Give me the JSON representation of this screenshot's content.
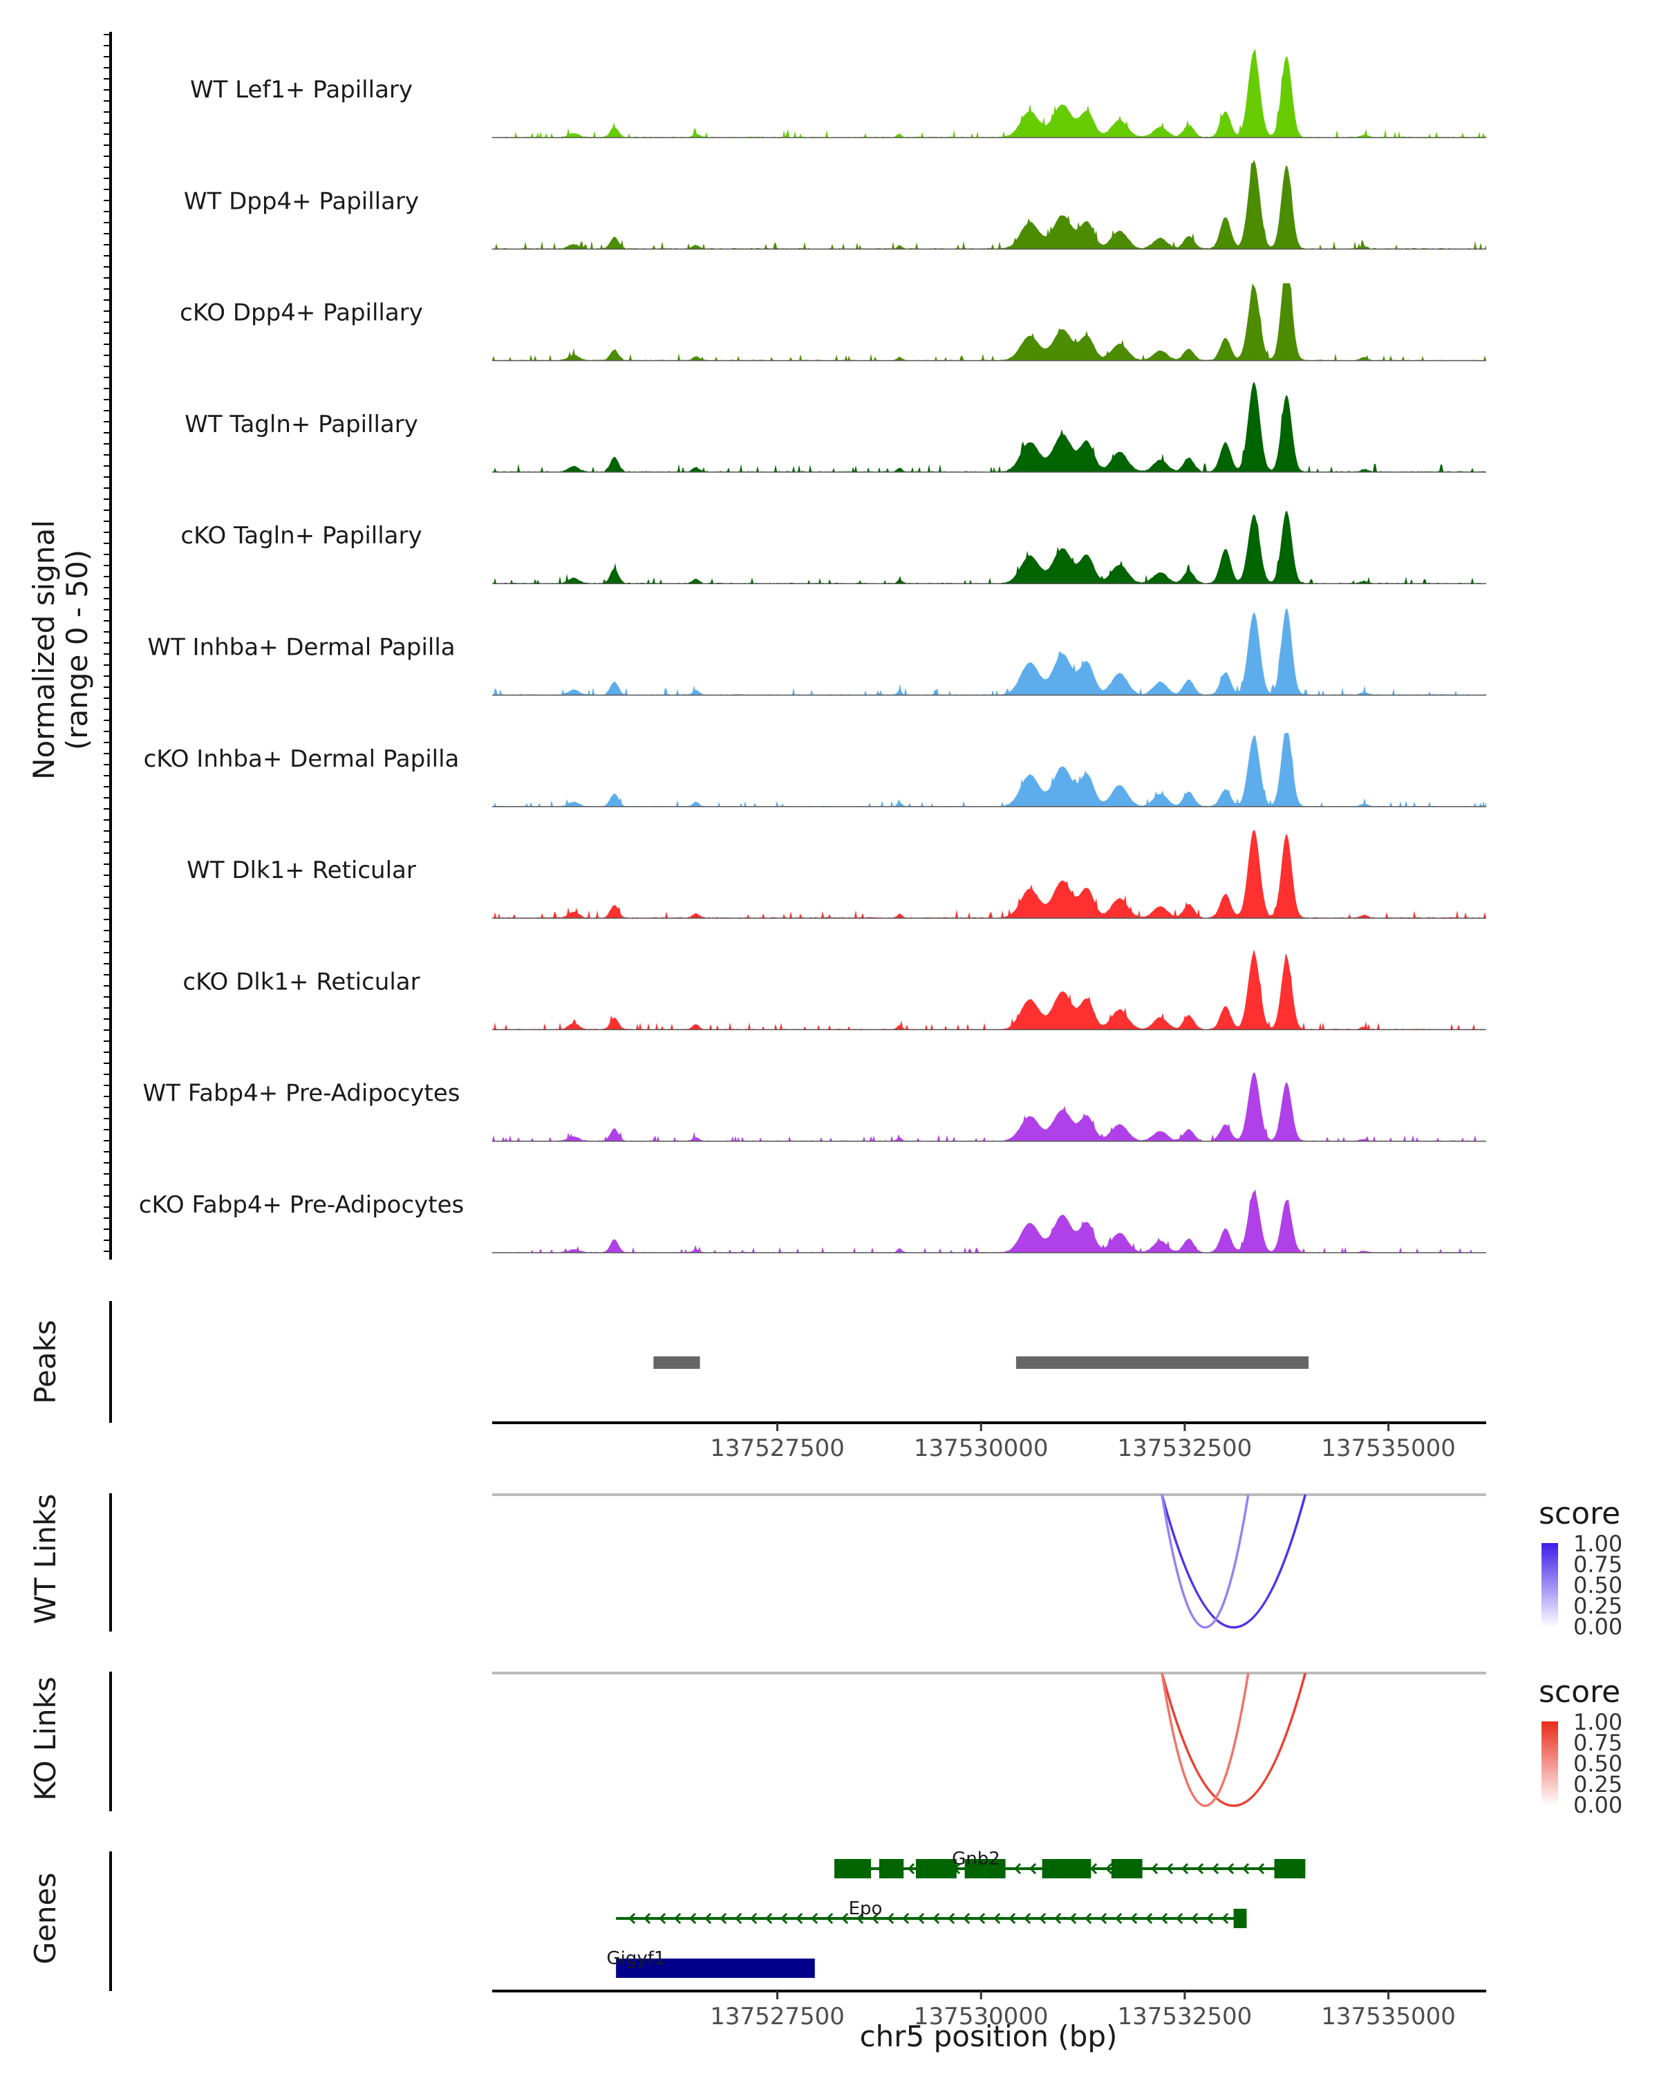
{
  "chart_data": {
    "type": "area",
    "title": "",
    "region": {
      "chrom": "chr5",
      "start": 137524000,
      "end": 137536200
    },
    "xlabel": "chr5 position (bp)",
    "x_ticks": [
      137527500,
      137530000,
      137532500,
      137535000
    ],
    "x_tick_labels": [
      "137527500",
      "137530000",
      "137532500",
      "137535000"
    ],
    "coverage": {
      "ylabel_line1": "Normalized signal",
      "ylabel_line2": "(range 0 - 50)",
      "ylim": [
        0,
        50
      ],
      "peak_profile": [
        {
          "pos": 137525000,
          "height": 0.05
        },
        {
          "pos": 137525500,
          "height": 0.12
        },
        {
          "pos": 137526500,
          "height": 0.04
        },
        {
          "pos": 137529000,
          "height": 0.04
        },
        {
          "pos": 137530600,
          "height": 0.3
        },
        {
          "pos": 137531000,
          "height": 0.38
        },
        {
          "pos": 137531300,
          "height": 0.3
        },
        {
          "pos": 137531700,
          "height": 0.2
        },
        {
          "pos": 137532200,
          "height": 0.12
        },
        {
          "pos": 137532550,
          "height": 0.14
        },
        {
          "pos": 137533000,
          "height": 0.3
        },
        {
          "pos": 137533350,
          "height": 1.0
        },
        {
          "pos": 137533750,
          "height": 0.95
        },
        {
          "pos": 137534700,
          "height": 0.03
        }
      ],
      "tracks": [
        {
          "name": "WT Lef1+ Papillary",
          "color": "#66CC00",
          "scale": 0.95
        },
        {
          "name": "WT Dpp4+ Papillary",
          "color": "#4C8C00",
          "scale": 0.98
        },
        {
          "name": "cKO Dpp4+ Papillary",
          "color": "#4C8C00",
          "scale": 0.82
        },
        {
          "name": "WT Tagln+ Papillary",
          "color": "#006400",
          "scale": 1.0
        },
        {
          "name": "cKO Tagln+ Papillary",
          "color": "#006400",
          "scale": 0.85
        },
        {
          "name": "WT Inhba+ Dermal Papilla",
          "color": "#5DADEC",
          "scale": 0.92
        },
        {
          "name": "cKO Inhba+ Dermal Papilla",
          "color": "#5DADEC",
          "scale": 0.78
        },
        {
          "name": "WT Dlk1+ Reticular",
          "color": "#FF3030",
          "scale": 0.98
        },
        {
          "name": "cKO Dlk1+ Reticular",
          "color": "#FF3030",
          "scale": 0.85
        },
        {
          "name": "WT Fabp4+ Pre-Adipocytes",
          "color": "#B040E8",
          "scale": 0.76
        },
        {
          "name": "cKO Fabp4+ Pre-Adipocytes",
          "color": "#B040E8",
          "scale": 0.68
        }
      ]
    },
    "peaks": {
      "label": "Peaks",
      "color": "#666666",
      "intervals": [
        [
          137525980,
          137526550
        ],
        [
          137530430,
          137534020
        ]
      ]
    },
    "links": [
      {
        "label": "WT Links",
        "legend_title": "score",
        "legend_ticks": [
          "1.00",
          "0.75",
          "0.50",
          "0.25",
          "0.00"
        ],
        "color_high": "#3E1CE8",
        "color_low": "#FFFFFF",
        "arcs": [
          {
            "start": 137532220,
            "end": 137533980,
            "score": 0.9
          },
          {
            "start": 137532220,
            "end": 137533280,
            "score": 0.55
          }
        ]
      },
      {
        "label": "KO Links",
        "legend_title": "score",
        "legend_ticks": [
          "1.00",
          "0.75",
          "0.50",
          "0.25",
          "0.00"
        ],
        "color_high": "#E82B1C",
        "color_low": "#FFFFFF",
        "arcs": [
          {
            "start": 137532220,
            "end": 137533980,
            "score": 0.9
          },
          {
            "start": 137532220,
            "end": 137533280,
            "score": 0.65
          }
        ]
      }
    ],
    "genes": {
      "label": "Genes",
      "items": [
        {
          "name": "Gnb2",
          "strand": "-",
          "color": "#006400",
          "start": 137528200,
          "end": 137533980,
          "exons": [
            [
              137528200,
              137528650
            ],
            [
              137528750,
              137529050
            ],
            [
              137529200,
              137529400
            ],
            [
              137529400,
              137529700
            ],
            [
              137529800,
              137530050
            ],
            [
              137530050,
              137530300
            ],
            [
              137530750,
              137531350
            ],
            [
              137531600,
              137531980
            ],
            [
              137533600,
              137533980
            ]
          ]
        },
        {
          "name": "Epo",
          "strand": "-",
          "color": "#006400",
          "start": 137525520,
          "end": 137533260,
          "exons": [
            [
              137533100,
              137533260
            ]
          ]
        },
        {
          "name": "Gigyf1",
          "strand": "-",
          "color": "#00008B",
          "start": 137525520,
          "end": 137527960,
          "exons": [
            [
              137525520,
              137527960
            ]
          ]
        }
      ]
    }
  }
}
